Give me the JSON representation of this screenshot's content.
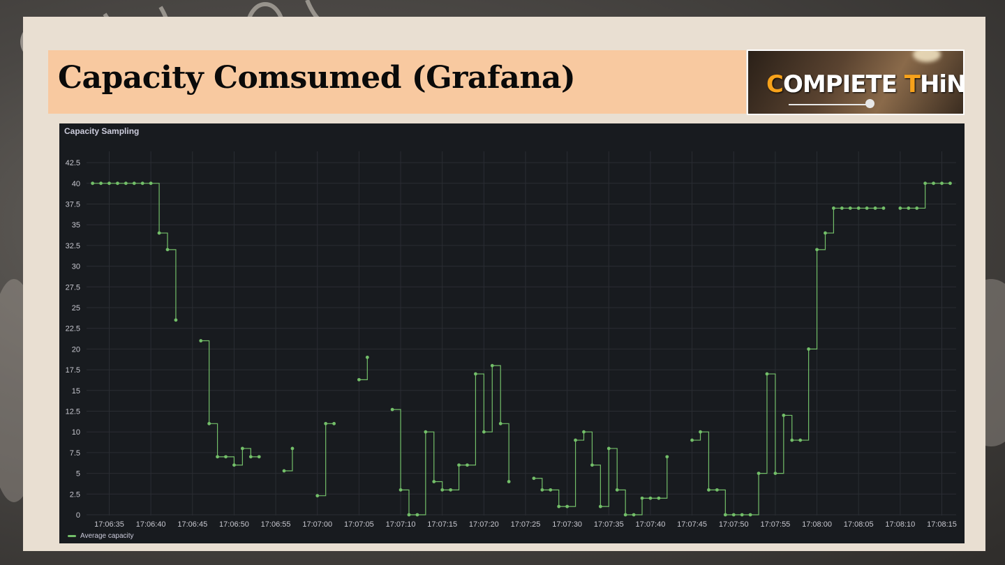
{
  "slide": {
    "title": "Capacity Comsumed (Grafana)",
    "logo": {
      "prefix_highlight": "C",
      "part1": "OMPIETE ",
      "highlight2": "T",
      "part2": "HiNK",
      "accent_color": "#f7a21b"
    }
  },
  "panel": {
    "title": "Capacity Sampling"
  },
  "chart_data": {
    "type": "line",
    "step": "after",
    "title": "Capacity Sampling",
    "xlabel": "",
    "ylabel": "",
    "xlim": [
      "17:06:32",
      "17:08:16"
    ],
    "ylim": [
      0,
      43.5
    ],
    "yticks": [
      0,
      2.5,
      5,
      7.5,
      10,
      12.5,
      15,
      17.5,
      20,
      22.5,
      25,
      27.5,
      30,
      32.5,
      35,
      37.5,
      40,
      42.5
    ],
    "ytick_labels": [
      "0",
      "2.5",
      "5",
      "7.5",
      "10",
      "12.5",
      "15",
      "17.5",
      "20",
      "22.5",
      "25",
      "27.5",
      "30",
      "32.5",
      "35",
      "37.5",
      "40",
      "42.5"
    ],
    "xticks": [
      "17:06:35",
      "17:06:40",
      "17:06:45",
      "17:06:50",
      "17:06:55",
      "17:07:00",
      "17:07:05",
      "17:07:10",
      "17:07:15",
      "17:07:20",
      "17:07:25",
      "17:07:30",
      "17:07:35",
      "17:07:40",
      "17:07:45",
      "17:07:50",
      "17:07:55",
      "17:08:00",
      "17:08:05",
      "17:08:10",
      "17:08:15"
    ],
    "grid": true,
    "legend_position": "bottom-left",
    "series": [
      {
        "name": "Average capacity",
        "color": "#73bf69",
        "segments": [
          [
            [
              "17:06:33",
              40
            ],
            [
              "17:06:34",
              40
            ],
            [
              "17:06:35",
              40
            ],
            [
              "17:06:36",
              40
            ],
            [
              "17:06:37",
              40
            ],
            [
              "17:06:38",
              40
            ],
            [
              "17:06:39",
              40
            ],
            [
              "17:06:40",
              40
            ],
            [
              "17:06:41",
              34
            ],
            [
              "17:06:42",
              32
            ],
            [
              "17:06:43",
              23.5
            ]
          ],
          [
            [
              "17:06:46",
              21
            ],
            [
              "17:06:47",
              11
            ],
            [
              "17:06:48",
              7
            ],
            [
              "17:06:49",
              7
            ],
            [
              "17:06:50",
              6
            ],
            [
              "17:06:51",
              8
            ],
            [
              "17:06:52",
              7
            ],
            [
              "17:06:53",
              7
            ]
          ],
          [
            [
              "17:06:56",
              5.3
            ],
            [
              "17:06:57",
              8
            ]
          ],
          [
            [
              "17:07:00",
              2.3
            ],
            [
              "17:07:01",
              11
            ],
            [
              "17:07:02",
              11
            ]
          ],
          [
            [
              "17:07:05",
              16.3
            ],
            [
              "17:07:06",
              19
            ]
          ],
          [
            [
              "17:07:09",
              12.7
            ],
            [
              "17:07:10",
              3
            ],
            [
              "17:07:11",
              0
            ],
            [
              "17:07:12",
              0
            ],
            [
              "17:07:13",
              10
            ],
            [
              "17:07:14",
              4
            ],
            [
              "17:07:15",
              3
            ],
            [
              "17:07:16",
              3
            ],
            [
              "17:07:17",
              6
            ],
            [
              "17:07:18",
              6
            ],
            [
              "17:07:19",
              17
            ],
            [
              "17:07:20",
              10
            ],
            [
              "17:07:21",
              18
            ],
            [
              "17:07:22",
              11
            ],
            [
              "17:07:23",
              4
            ]
          ],
          [
            [
              "17:07:26",
              4.4
            ],
            [
              "17:07:27",
              3
            ],
            [
              "17:07:28",
              3
            ],
            [
              "17:07:29",
              1
            ],
            [
              "17:07:30",
              1
            ],
            [
              "17:07:31",
              9
            ],
            [
              "17:07:32",
              10
            ],
            [
              "17:07:33",
              6
            ],
            [
              "17:07:34",
              1
            ],
            [
              "17:07:35",
              8
            ],
            [
              "17:07:36",
              3
            ],
            [
              "17:07:37",
              0
            ],
            [
              "17:07:38",
              0
            ],
            [
              "17:07:39",
              2
            ],
            [
              "17:07:40",
              2
            ],
            [
              "17:07:41",
              2
            ],
            [
              "17:07:42",
              7
            ]
          ],
          [
            [
              "17:07:45",
              9
            ],
            [
              "17:07:46",
              10
            ],
            [
              "17:07:47",
              3
            ],
            [
              "17:07:48",
              3
            ],
            [
              "17:07:49",
              0
            ],
            [
              "17:07:50",
              0
            ],
            [
              "17:07:51",
              0
            ],
            [
              "17:07:52",
              0
            ],
            [
              "17:07:53",
              5
            ],
            [
              "17:07:54",
              17
            ],
            [
              "17:07:55",
              5
            ],
            [
              "17:07:56",
              12
            ],
            [
              "17:07:57",
              9
            ],
            [
              "17:07:58",
              9
            ],
            [
              "17:07:59",
              20
            ],
            [
              "17:08:00",
              32
            ],
            [
              "17:08:01",
              34
            ],
            [
              "17:08:02",
              37
            ],
            [
              "17:08:03",
              37
            ],
            [
              "17:08:04",
              37
            ],
            [
              "17:08:05",
              37
            ],
            [
              "17:08:06",
              37
            ],
            [
              "17:08:07",
              37
            ],
            [
              "17:08:08",
              37
            ]
          ],
          [
            [
              "17:08:10",
              37
            ],
            [
              "17:08:11",
              37
            ],
            [
              "17:08:12",
              37
            ],
            [
              "17:08:13",
              40
            ],
            [
              "17:08:14",
              40
            ],
            [
              "17:08:15",
              40
            ],
            [
              "17:08:16",
              40
            ]
          ]
        ]
      }
    ]
  }
}
